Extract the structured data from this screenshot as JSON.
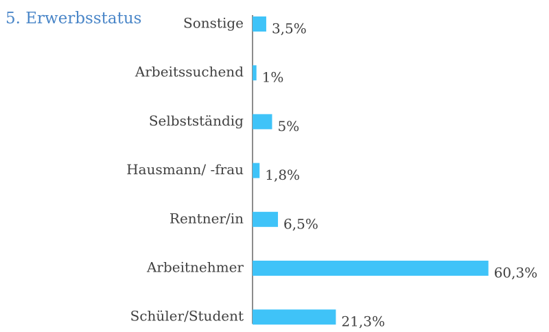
{
  "chart_data": {
    "type": "bar",
    "orientation": "horizontal",
    "title": "5. Erwerbsstatus",
    "categories": [
      "Sonstige",
      "Arbeitssuchend",
      "Selbstständig",
      "Hausmann/ -frau",
      "Rentner/in",
      "Arbeitnehmer",
      "Schüler/Student"
    ],
    "values": [
      3.5,
      1,
      5,
      1.8,
      6.5,
      60.3,
      21.3
    ],
    "value_labels": [
      "3,5%",
      "1%",
      "5%",
      "1,8%",
      "6,5%",
      "60,3%",
      "21,3%"
    ],
    "color": "#3fc3f8"
  }
}
